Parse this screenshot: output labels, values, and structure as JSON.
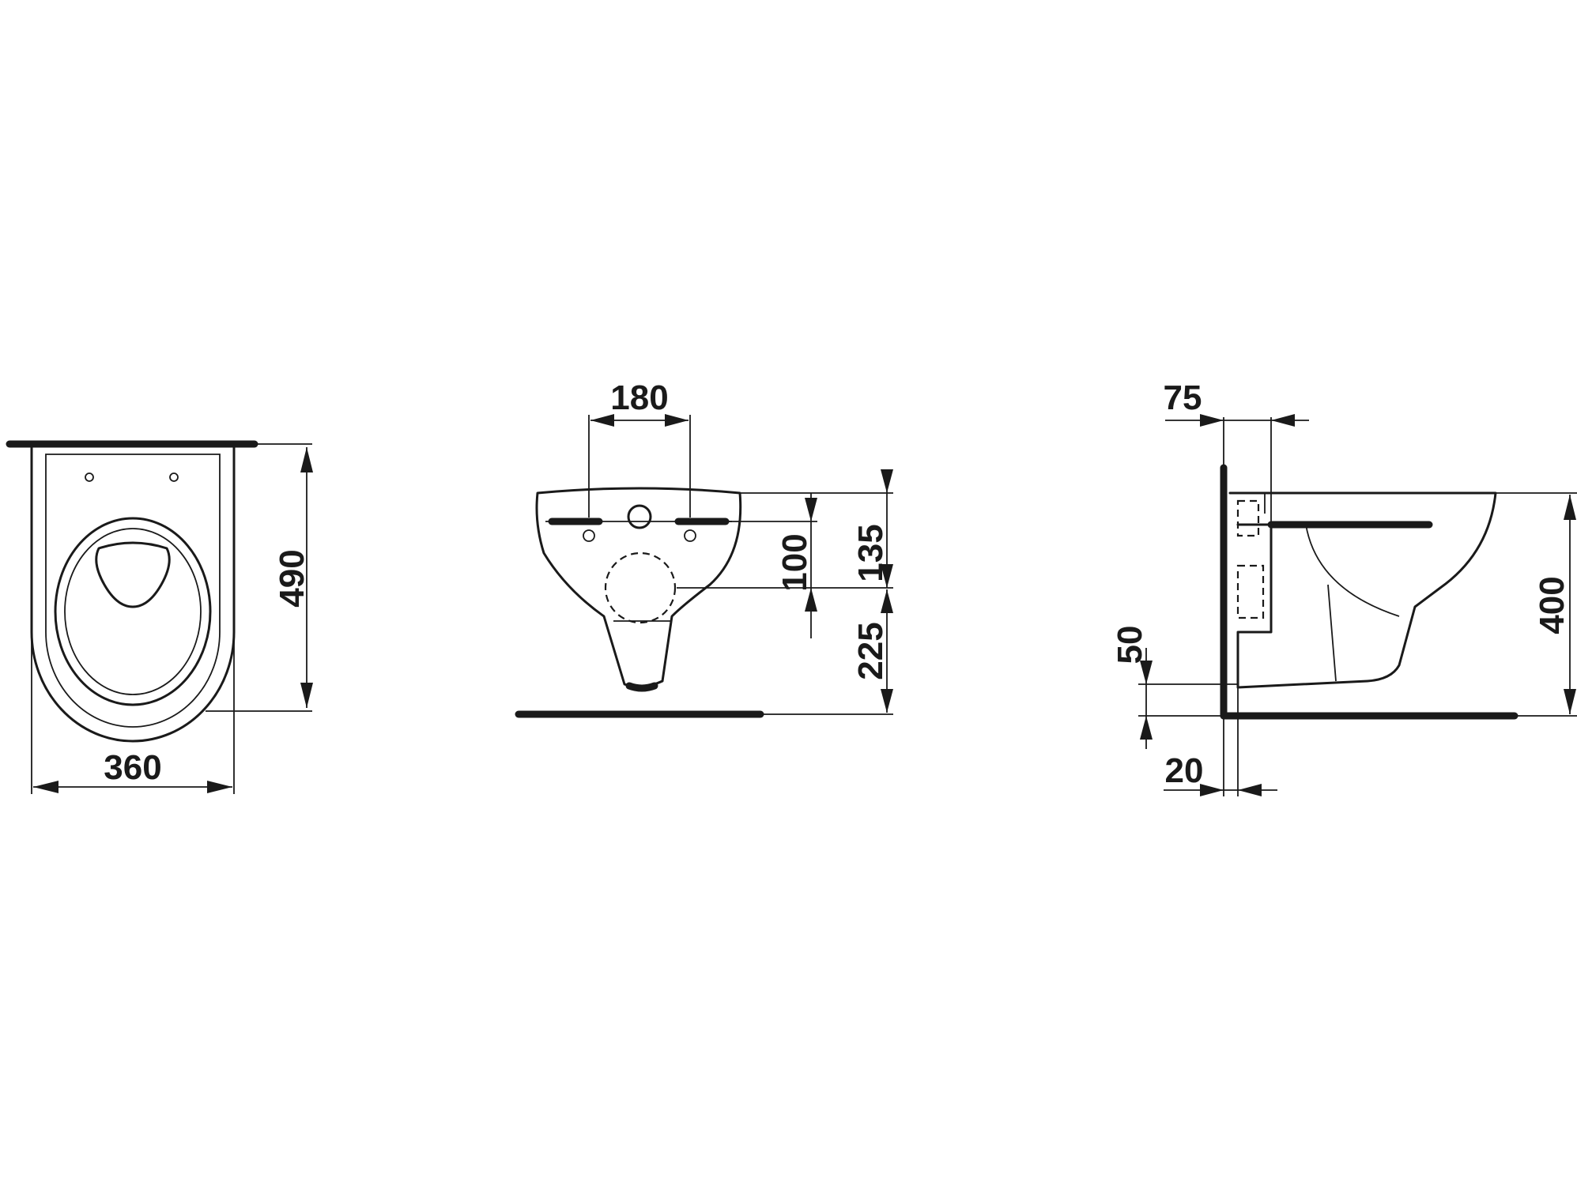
{
  "colors": {
    "line": "#1a1a1a",
    "background": "#ffffff"
  },
  "views": {
    "top": {
      "width": "360",
      "depth": "490"
    },
    "front": {
      "bolt_spacing": "180",
      "bolt_to_outlet": "100",
      "rim_to_outlet": "135",
      "outlet_to_floor": "225"
    },
    "side": {
      "wall_offset": "75",
      "rim_height": "400",
      "floor_gap": "50",
      "wall_thickness": "20"
    }
  }
}
